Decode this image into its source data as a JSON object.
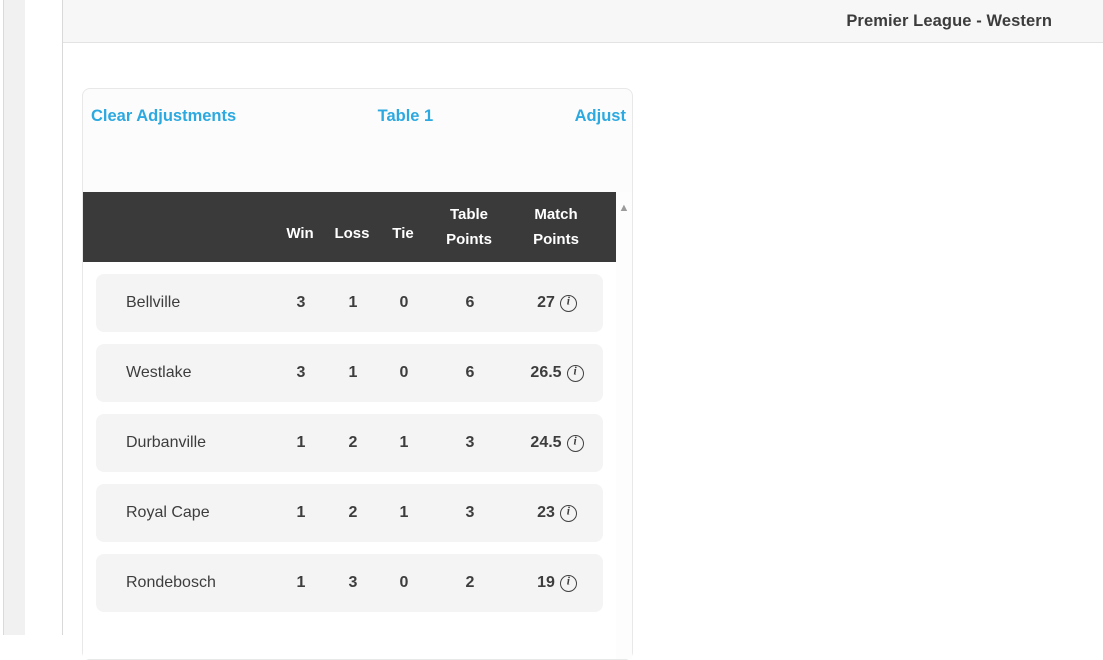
{
  "page": {
    "title": "Premier League - Western"
  },
  "card": {
    "header": {
      "clear_label": "Clear Adjustments",
      "center_label": "Table 1",
      "adjust_label": "Adjust"
    },
    "table": {
      "headers": {
        "win": "Win",
        "loss": "Loss",
        "tie": "Tie",
        "table_points_line1": "Table",
        "table_points_line2": "Points",
        "match_points_line1": "Match",
        "match_points_line2": "Points"
      },
      "rows": [
        {
          "name": "Bellville",
          "win": "3",
          "loss": "1",
          "tie": "0",
          "table_points": "6",
          "match_points": "27"
        },
        {
          "name": "Westlake",
          "win": "3",
          "loss": "1",
          "tie": "0",
          "table_points": "6",
          "match_points": "26.5"
        },
        {
          "name": "Durbanville",
          "win": "1",
          "loss": "2",
          "tie": "1",
          "table_points": "3",
          "match_points": "24.5"
        },
        {
          "name": "Royal Cape",
          "win": "1",
          "loss": "2",
          "tie": "1",
          "table_points": "3",
          "match_points": "23"
        },
        {
          "name": "Rondebosch",
          "win": "1",
          "loss": "3",
          "tie": "0",
          "table_points": "2",
          "match_points": "19"
        }
      ],
      "info_glyph": "i"
    },
    "scrollbar": {
      "up_arrow": "▲"
    }
  },
  "colors": {
    "accent_blue": "#2ba9e0",
    "table_header_bg": "#3a3a3a",
    "row_bg": "#f4f4f4",
    "topbar_bg": "#f7f7f7",
    "text": "#3d3d3d"
  }
}
